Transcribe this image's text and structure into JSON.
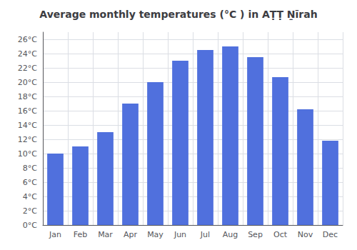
{
  "chart_data": {
    "type": "bar",
    "title": "Average monthly temperatures (°C ) in AṬṬ Ṉīrah",
    "categories": [
      "Jan",
      "Feb",
      "Mar",
      "Apr",
      "May",
      "Jun",
      "Jul",
      "Aug",
      "Sep",
      "Oct",
      "Nov",
      "Dec"
    ],
    "values": [
      10.0,
      11.0,
      13.0,
      17.0,
      20.0,
      23.0,
      24.5,
      25.0,
      23.5,
      20.7,
      16.2,
      11.8
    ],
    "ylim": [
      0,
      27
    ],
    "yticks": [
      {
        "value": 0,
        "label": "0°C"
      },
      {
        "value": 2,
        "label": "2°C"
      },
      {
        "value": 4,
        "label": "4°C"
      },
      {
        "value": 6,
        "label": "6°C"
      },
      {
        "value": 8,
        "label": "8°C"
      },
      {
        "value": 10,
        "label": "10°C"
      },
      {
        "value": 12,
        "label": "12°C"
      },
      {
        "value": 14,
        "label": "14°C"
      },
      {
        "value": 16,
        "label": "16°C"
      },
      {
        "value": 18,
        "label": "18°C"
      },
      {
        "value": 20,
        "label": "20°C"
      },
      {
        "value": 22,
        "label": "22°C"
      },
      {
        "value": 24,
        "label": "24°C"
      },
      {
        "value": 26,
        "label": "26°C"
      }
    ],
    "grid": true
  }
}
